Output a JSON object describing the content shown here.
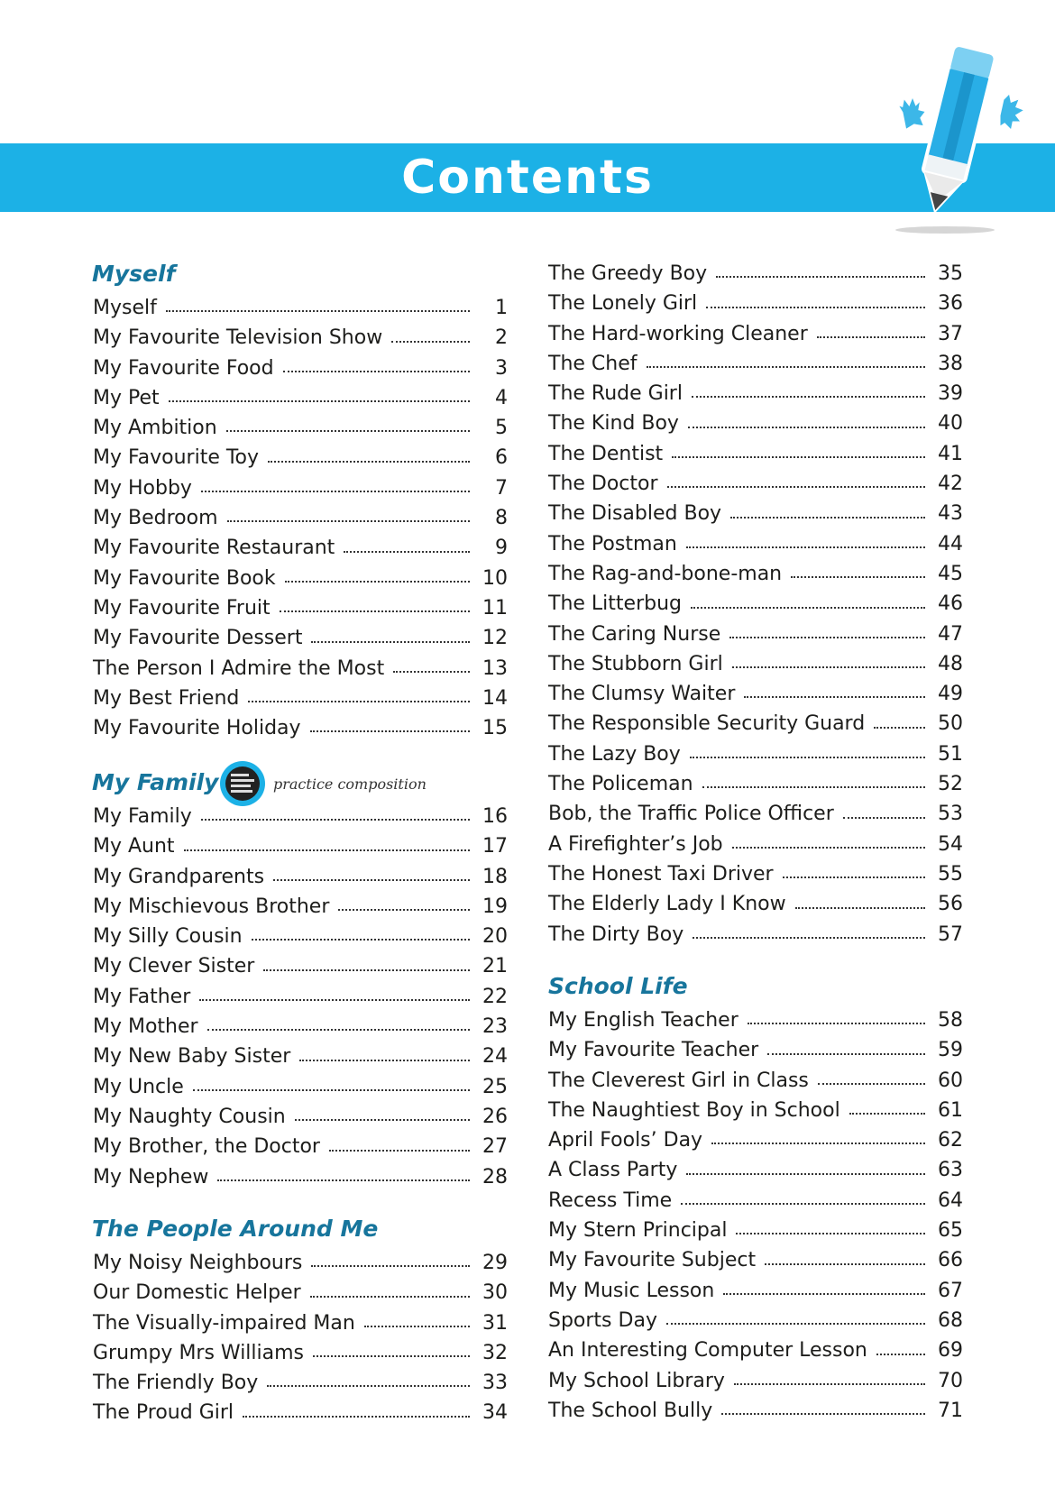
{
  "title": "Contents",
  "practice_label": "practice composition",
  "colors": {
    "banner": "#1cb1e6",
    "heading": "#17759c"
  },
  "sections": {
    "myself": {
      "heading": "Myself",
      "items": [
        {
          "t": "Myself",
          "n": "1"
        },
        {
          "t": "My Favourite Television Show",
          "n": "2"
        },
        {
          "t": "My Favourite Food",
          "n": "3"
        },
        {
          "t": "My Pet",
          "n": "4"
        },
        {
          "t": "My Ambition",
          "n": "5"
        },
        {
          "t": "My Favourite Toy",
          "n": "6"
        },
        {
          "t": "My Hobby",
          "n": "7"
        },
        {
          "t": "My Bedroom",
          "n": "8"
        },
        {
          "t": "My Favourite Restaurant",
          "n": "9"
        },
        {
          "t": "My Favourite Book",
          "n": "10"
        },
        {
          "t": "My Favourite Fruit",
          "n": "11"
        },
        {
          "t": "My Favourite Dessert",
          "n": "12"
        },
        {
          "t": "The Person I Admire the Most",
          "n": "13"
        },
        {
          "t": "My Best Friend",
          "n": "14"
        },
        {
          "t": "My Favourite Holiday",
          "n": "15"
        }
      ]
    },
    "family": {
      "heading": "My Family",
      "items": [
        {
          "t": "My Family",
          "n": "16"
        },
        {
          "t": "My Aunt",
          "n": "17"
        },
        {
          "t": "My Grandparents",
          "n": "18"
        },
        {
          "t": "My Mischievous Brother",
          "n": "19"
        },
        {
          "t": "My Silly Cousin",
          "n": "20"
        },
        {
          "t": "My Clever Sister",
          "n": "21"
        },
        {
          "t": "My Father",
          "n": "22"
        },
        {
          "t": "My Mother",
          "n": "23"
        },
        {
          "t": "My New Baby Sister",
          "n": "24"
        },
        {
          "t": "My Uncle",
          "n": "25"
        },
        {
          "t": "My Naughty Cousin",
          "n": "26"
        },
        {
          "t": "My Brother, the Doctor",
          "n": "27"
        },
        {
          "t": "My Nephew",
          "n": "28"
        }
      ]
    },
    "people": {
      "heading": "The People Around Me",
      "items": [
        {
          "t": "My Noisy Neighbours",
          "n": "29"
        },
        {
          "t": "Our Domestic Helper",
          "n": "30"
        },
        {
          "t": "The Visually-impaired Man",
          "n": "31"
        },
        {
          "t": "Grumpy Mrs Williams",
          "n": "32"
        },
        {
          "t": "The Friendly Boy",
          "n": "33"
        },
        {
          "t": "The Proud Girl",
          "n": "34"
        },
        {
          "t": "The Greedy Boy",
          "n": "35"
        },
        {
          "t": "The Lonely Girl",
          "n": "36"
        },
        {
          "t": "The Hard-working Cleaner",
          "n": "37"
        },
        {
          "t": "The Chef",
          "n": "38"
        },
        {
          "t": "The Rude Girl",
          "n": "39"
        },
        {
          "t": "The Kind Boy",
          "n": "40"
        },
        {
          "t": "The Dentist",
          "n": "41"
        },
        {
          "t": "The Doctor",
          "n": "42"
        },
        {
          "t": "The Disabled Boy",
          "n": "43"
        },
        {
          "t": "The Postman",
          "n": "44"
        },
        {
          "t": "The Rag-and-bone-man",
          "n": "45"
        },
        {
          "t": "The Litterbug",
          "n": "46"
        },
        {
          "t": "The Caring Nurse",
          "n": "47"
        },
        {
          "t": "The Stubborn Girl",
          "n": "48"
        },
        {
          "t": "The Clumsy Waiter",
          "n": "49"
        },
        {
          "t": "The Responsible Security Guard",
          "n": "50"
        },
        {
          "t": "The Lazy Boy",
          "n": "51"
        },
        {
          "t": "The Policeman",
          "n": "52"
        },
        {
          "t": "Bob, the Traffic Police Officer",
          "n": "53"
        },
        {
          "t": "A Firefighter’s Job",
          "n": "54"
        },
        {
          "t": "The Honest Taxi Driver",
          "n": "55"
        },
        {
          "t": "The Elderly Lady I Know",
          "n": "56"
        },
        {
          "t": "The Dirty Boy",
          "n": "57"
        }
      ]
    },
    "school": {
      "heading": "School Life",
      "items": [
        {
          "t": "My English Teacher",
          "n": "58"
        },
        {
          "t": "My Favourite Teacher",
          "n": "59"
        },
        {
          "t": "The Cleverest Girl in Class",
          "n": "60"
        },
        {
          "t": "The Naughtiest Boy in School",
          "n": "61"
        },
        {
          "t": "April Fools’ Day",
          "n": "62"
        },
        {
          "t": "A Class Party",
          "n": "63"
        },
        {
          "t": "Recess Time",
          "n": "64"
        },
        {
          "t": "My Stern Principal",
          "n": "65"
        },
        {
          "t": "My Favourite Subject",
          "n": "66"
        },
        {
          "t": "My Music Lesson",
          "n": "67"
        },
        {
          "t": "Sports Day",
          "n": "68"
        },
        {
          "t": "An Interesting Computer Lesson",
          "n": "69"
        },
        {
          "t": "My School Library",
          "n": "70"
        },
        {
          "t": "The School Bully",
          "n": "71"
        }
      ]
    }
  }
}
